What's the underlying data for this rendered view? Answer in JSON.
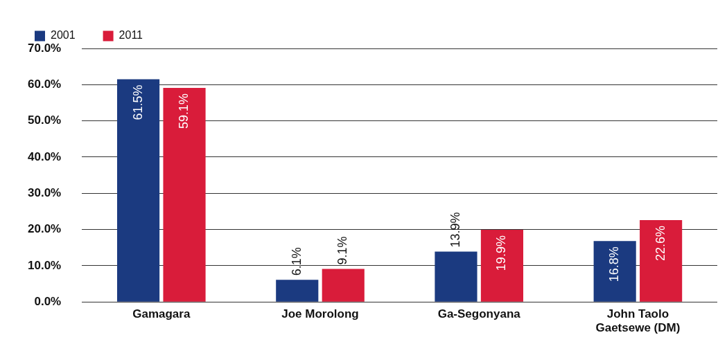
{
  "chart_data": {
    "type": "bar",
    "categories": [
      "Gamagara",
      "Joe Morolong",
      "Ga-Segonyana",
      "John Taolo Gaetsewe (DM)"
    ],
    "series": [
      {
        "name": "2001",
        "color": "#1b3a80",
        "values": [
          61.5,
          6.1,
          13.9,
          16.8
        ],
        "value_labels": [
          "61.5%",
          "6.1%",
          "13.9%",
          "16.8%"
        ]
      },
      {
        "name": "2011",
        "color": "#d91c3a",
        "values": [
          59.1,
          9.1,
          19.9,
          22.6
        ],
        "value_labels": [
          "59.1%",
          "9.1%",
          "19.9%",
          "22.6%"
        ]
      }
    ],
    "ylim": [
      0,
      70
    ],
    "yticks": [
      {
        "value": 0,
        "label": "0.0%"
      },
      {
        "value": 10,
        "label": "10.0%"
      },
      {
        "value": 20,
        "label": "20.0%"
      },
      {
        "value": 30,
        "label": "30.0%"
      },
      {
        "value": 40,
        "label": "40.0%"
      },
      {
        "value": 50,
        "label": "50.0%"
      },
      {
        "value": 60,
        "label": "60.0%"
      },
      {
        "value": 70,
        "label": "70.0%"
      }
    ],
    "grid": "y",
    "legend": "top left"
  }
}
